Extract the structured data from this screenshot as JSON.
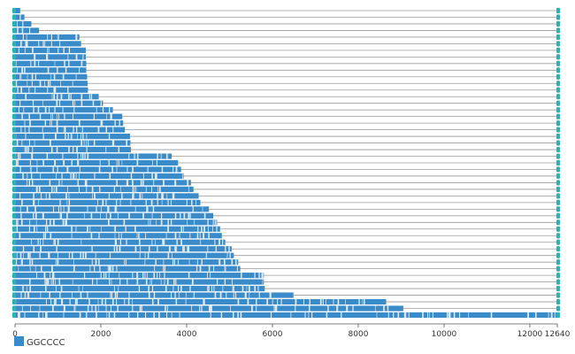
{
  "chart_data": {
    "type": "bar",
    "orientation": "horizontal",
    "x_label": "",
    "y_label": "",
    "x_min": 0,
    "x_max": 12640,
    "x_ticks": [
      0,
      2000,
      4000,
      6000,
      8000,
      10000,
      12000,
      12640
    ],
    "x_tick_labels": [
      "0",
      "2000",
      "4000",
      "6000",
      "8000",
      "10000",
      "12000",
      "12640"
    ],
    "grid": false,
    "legend": {
      "position": "bottom-left",
      "label": "GGCCCC",
      "color": "#3a8bc9"
    },
    "track_end_marker_color": "#2ab3b0",
    "series": [
      {
        "name": "GGCCCC",
        "color": "#3a8bc9",
        "values": [
          120,
          220,
          380,
          560,
          1500,
          1540,
          1650,
          1650,
          1660,
          1660,
          1680,
          1690,
          1700,
          1950,
          2050,
          2280,
          2500,
          2520,
          2560,
          2680,
          2690,
          2700,
          3650,
          3800,
          3870,
          3930,
          4100,
          4160,
          4280,
          4320,
          4520,
          4620,
          4710,
          4780,
          4820,
          4900,
          5050,
          5100,
          5200,
          5250,
          5800,
          5800,
          5820,
          6500,
          8650,
          9050,
          12640
        ]
      }
    ]
  }
}
